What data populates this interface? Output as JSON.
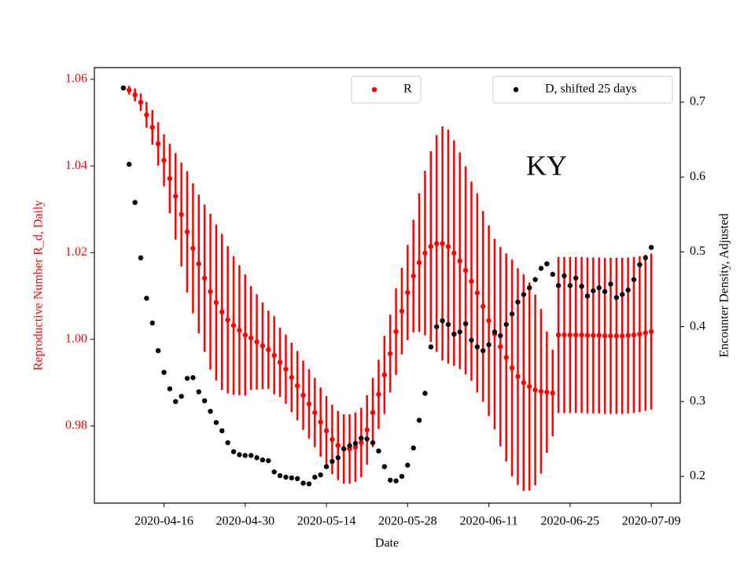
{
  "chart_data": {
    "type": "scatter-errorbar",
    "annotation": "KY",
    "x_label": "Date",
    "y_label": "Reproductive Number R_d, Daily",
    "y2_label": "Encounter Density, Adjusted",
    "x": [
      "2020-04-09",
      "2020-04-10",
      "2020-04-11",
      "2020-04-12",
      "2020-04-13",
      "2020-04-14",
      "2020-04-15",
      "2020-04-16",
      "2020-04-17",
      "2020-04-18",
      "2020-04-19",
      "2020-04-20",
      "2020-04-21",
      "2020-04-22",
      "2020-04-23",
      "2020-04-24",
      "2020-04-25",
      "2020-04-26",
      "2020-04-27",
      "2020-04-28",
      "2020-04-29",
      "2020-04-30",
      "2020-05-01",
      "2020-05-02",
      "2020-05-03",
      "2020-05-04",
      "2020-05-05",
      "2020-05-06",
      "2020-05-07",
      "2020-05-08",
      "2020-05-09",
      "2020-05-10",
      "2020-05-11",
      "2020-05-12",
      "2020-05-13",
      "2020-05-14",
      "2020-05-15",
      "2020-05-16",
      "2020-05-17",
      "2020-05-18",
      "2020-05-19",
      "2020-05-20",
      "2020-05-21",
      "2020-05-22",
      "2020-05-23",
      "2020-05-24",
      "2020-05-25",
      "2020-05-26",
      "2020-05-27",
      "2020-05-28",
      "2020-05-29",
      "2020-05-30",
      "2020-05-31",
      "2020-06-01",
      "2020-06-02",
      "2020-06-03",
      "2020-06-04",
      "2020-06-05",
      "2020-06-06",
      "2020-06-07",
      "2020-06-08",
      "2020-06-09",
      "2020-06-10",
      "2020-06-11",
      "2020-06-12",
      "2020-06-13",
      "2020-06-14",
      "2020-06-15",
      "2020-06-16",
      "2020-06-17",
      "2020-06-18",
      "2020-06-19",
      "2020-06-20",
      "2020-06-21",
      "2020-06-22",
      "2020-06-23",
      "2020-06-24",
      "2020-06-25",
      "2020-06-26",
      "2020-06-27",
      "2020-06-28",
      "2020-06-29",
      "2020-06-30",
      "2020-07-01",
      "2020-07-02",
      "2020-07-03",
      "2020-07-04",
      "2020-07-05",
      "2020-07-06",
      "2020-07-07",
      "2020-07-08",
      "2020-07-09"
    ],
    "xlim": [
      "2020-04-04",
      "2020-07-14"
    ],
    "xticks": [
      "2020-04-16",
      "2020-04-30",
      "2020-05-14",
      "2020-05-28",
      "2020-06-11",
      "2020-06-25",
      "2020-07-09"
    ],
    "ylim": [
      0.9622,
      1.0627
    ],
    "yticks": [
      0.98,
      {
        "value": 1,
        "label": "1.00"
      },
      1.02,
      1.04,
      1.06
    ],
    "y2lim": [
      0.1643,
      0.7462
    ],
    "y2ticks": [
      0.2,
      0.3,
      0.4,
      0.5,
      0.6,
      0.7
    ],
    "legend": [
      "upper center",
      "upper right"
    ],
    "series": [
      {
        "name": "R",
        "color": "#ff0000",
        "values": [
          1.058,
          1.0575,
          1.0564,
          1.0547,
          1.0518,
          1.0489,
          1.0451,
          1.0413,
          1.0371,
          1.033,
          1.0288,
          1.0248,
          1.021,
          1.0174,
          1.0141,
          1.011,
          1.0085,
          1.0063,
          1.0045,
          1.0032,
          1.0021,
          1.001,
          1.0003,
          0.9994,
          0.9985,
          0.9976,
          0.9963,
          0.9947,
          0.9931,
          0.9912,
          0.9893,
          0.9871,
          0.9851,
          0.9831,
          0.9809,
          0.9789,
          0.9769,
          0.9755,
          0.9747,
          0.9747,
          0.9751,
          0.9762,
          0.9791,
          0.9831,
          0.9873,
          0.9918,
          0.9967,
          1.0018,
          1.0065,
          1.0108,
          1.0146,
          1.0177,
          1.0199,
          1.0214,
          1.0221,
          1.0221,
          1.0214,
          1.0199,
          1.0181,
          1.0159,
          1.0134,
          1.0107,
          1.0076,
          1.0043,
          1.0012,
          0.9983,
          0.9958,
          0.9934,
          0.9914,
          0.99,
          0.9891,
          0.9883,
          0.988,
          0.9878,
          0.9876,
          1.001,
          1.001,
          1.001,
          1.001,
          1.001,
          1.0009,
          1.0009,
          1.0009,
          1.0008,
          1.0008,
          1.0008,
          1.0008,
          1.0009,
          1.001,
          1.0012,
          1.0015,
          1.0018
        ],
        "errors": [
          0.0005,
          0.001,
          0.0015,
          0.002,
          0.003,
          0.004,
          0.005,
          0.006,
          0.008,
          0.01,
          0.012,
          0.014,
          0.015,
          0.016,
          0.017,
          0.018,
          0.018,
          0.018,
          0.017,
          0.016,
          0.015,
          0.014,
          0.012,
          0.011,
          0.01,
          0.009,
          0.009,
          0.008,
          0.008,
          0.008,
          0.008,
          0.008,
          0.008,
          0.008,
          0.008,
          0.008,
          0.008,
          0.008,
          0.008,
          0.008,
          0.008,
          0.008,
          0.008,
          0.008,
          0.008,
          0.009,
          0.009,
          0.01,
          0.01,
          0.011,
          0.013,
          0.016,
          0.019,
          0.022,
          0.025,
          0.027,
          0.027,
          0.026,
          0.025,
          0.024,
          0.023,
          0.023,
          0.022,
          0.022,
          0.022,
          0.023,
          0.024,
          0.025,
          0.025,
          0.025,
          0.024,
          0.022,
          0.019,
          0.014,
          0.01,
          0.018,
          0.018,
          0.018,
          0.018,
          0.018,
          0.018,
          0.018,
          0.018,
          0.018,
          0.018,
          0.018,
          0.018,
          0.018,
          0.018,
          0.018,
          0.018,
          0.018
        ]
      },
      {
        "name": "D, shifted 25 days",
        "color": "#000000",
        "axis": "y2",
        "values": [
          0.719,
          0.617,
          0.566,
          0.492,
          0.438,
          0.405,
          0.368,
          0.339,
          0.317,
          0.3,
          0.307,
          0.331,
          0.332,
          0.313,
          0.301,
          0.287,
          0.272,
          0.261,
          0.245,
          0.233,
          0.229,
          0.228,
          0.228,
          0.225,
          0.222,
          0.221,
          0.206,
          0.201,
          0.199,
          0.198,
          0.197,
          0.191,
          0.19,
          0.199,
          0.202,
          0.213,
          0.22,
          0.225,
          0.237,
          0.241,
          0.244,
          0.251,
          0.25,
          0.245,
          0.234,
          0.213,
          0.195,
          0.194,
          0.2,
          0.215,
          0.238,
          0.275,
          0.311,
          0.373,
          0.4,
          0.408,
          0.403,
          0.39,
          0.393,
          0.404,
          0.382,
          0.373,
          0.368,
          0.376,
          0.393,
          0.388,
          0.403,
          0.417,
          0.433,
          0.443,
          0.452,
          0.463,
          0.478,
          0.484,
          0.47,
          0.455,
          0.468,
          0.455,
          0.465,
          0.454,
          0.441,
          0.448,
          0.452,
          0.447,
          0.457,
          0.439,
          0.443,
          0.449,
          0.463,
          0.483,
          0.492,
          0.506
        ]
      }
    ]
  }
}
